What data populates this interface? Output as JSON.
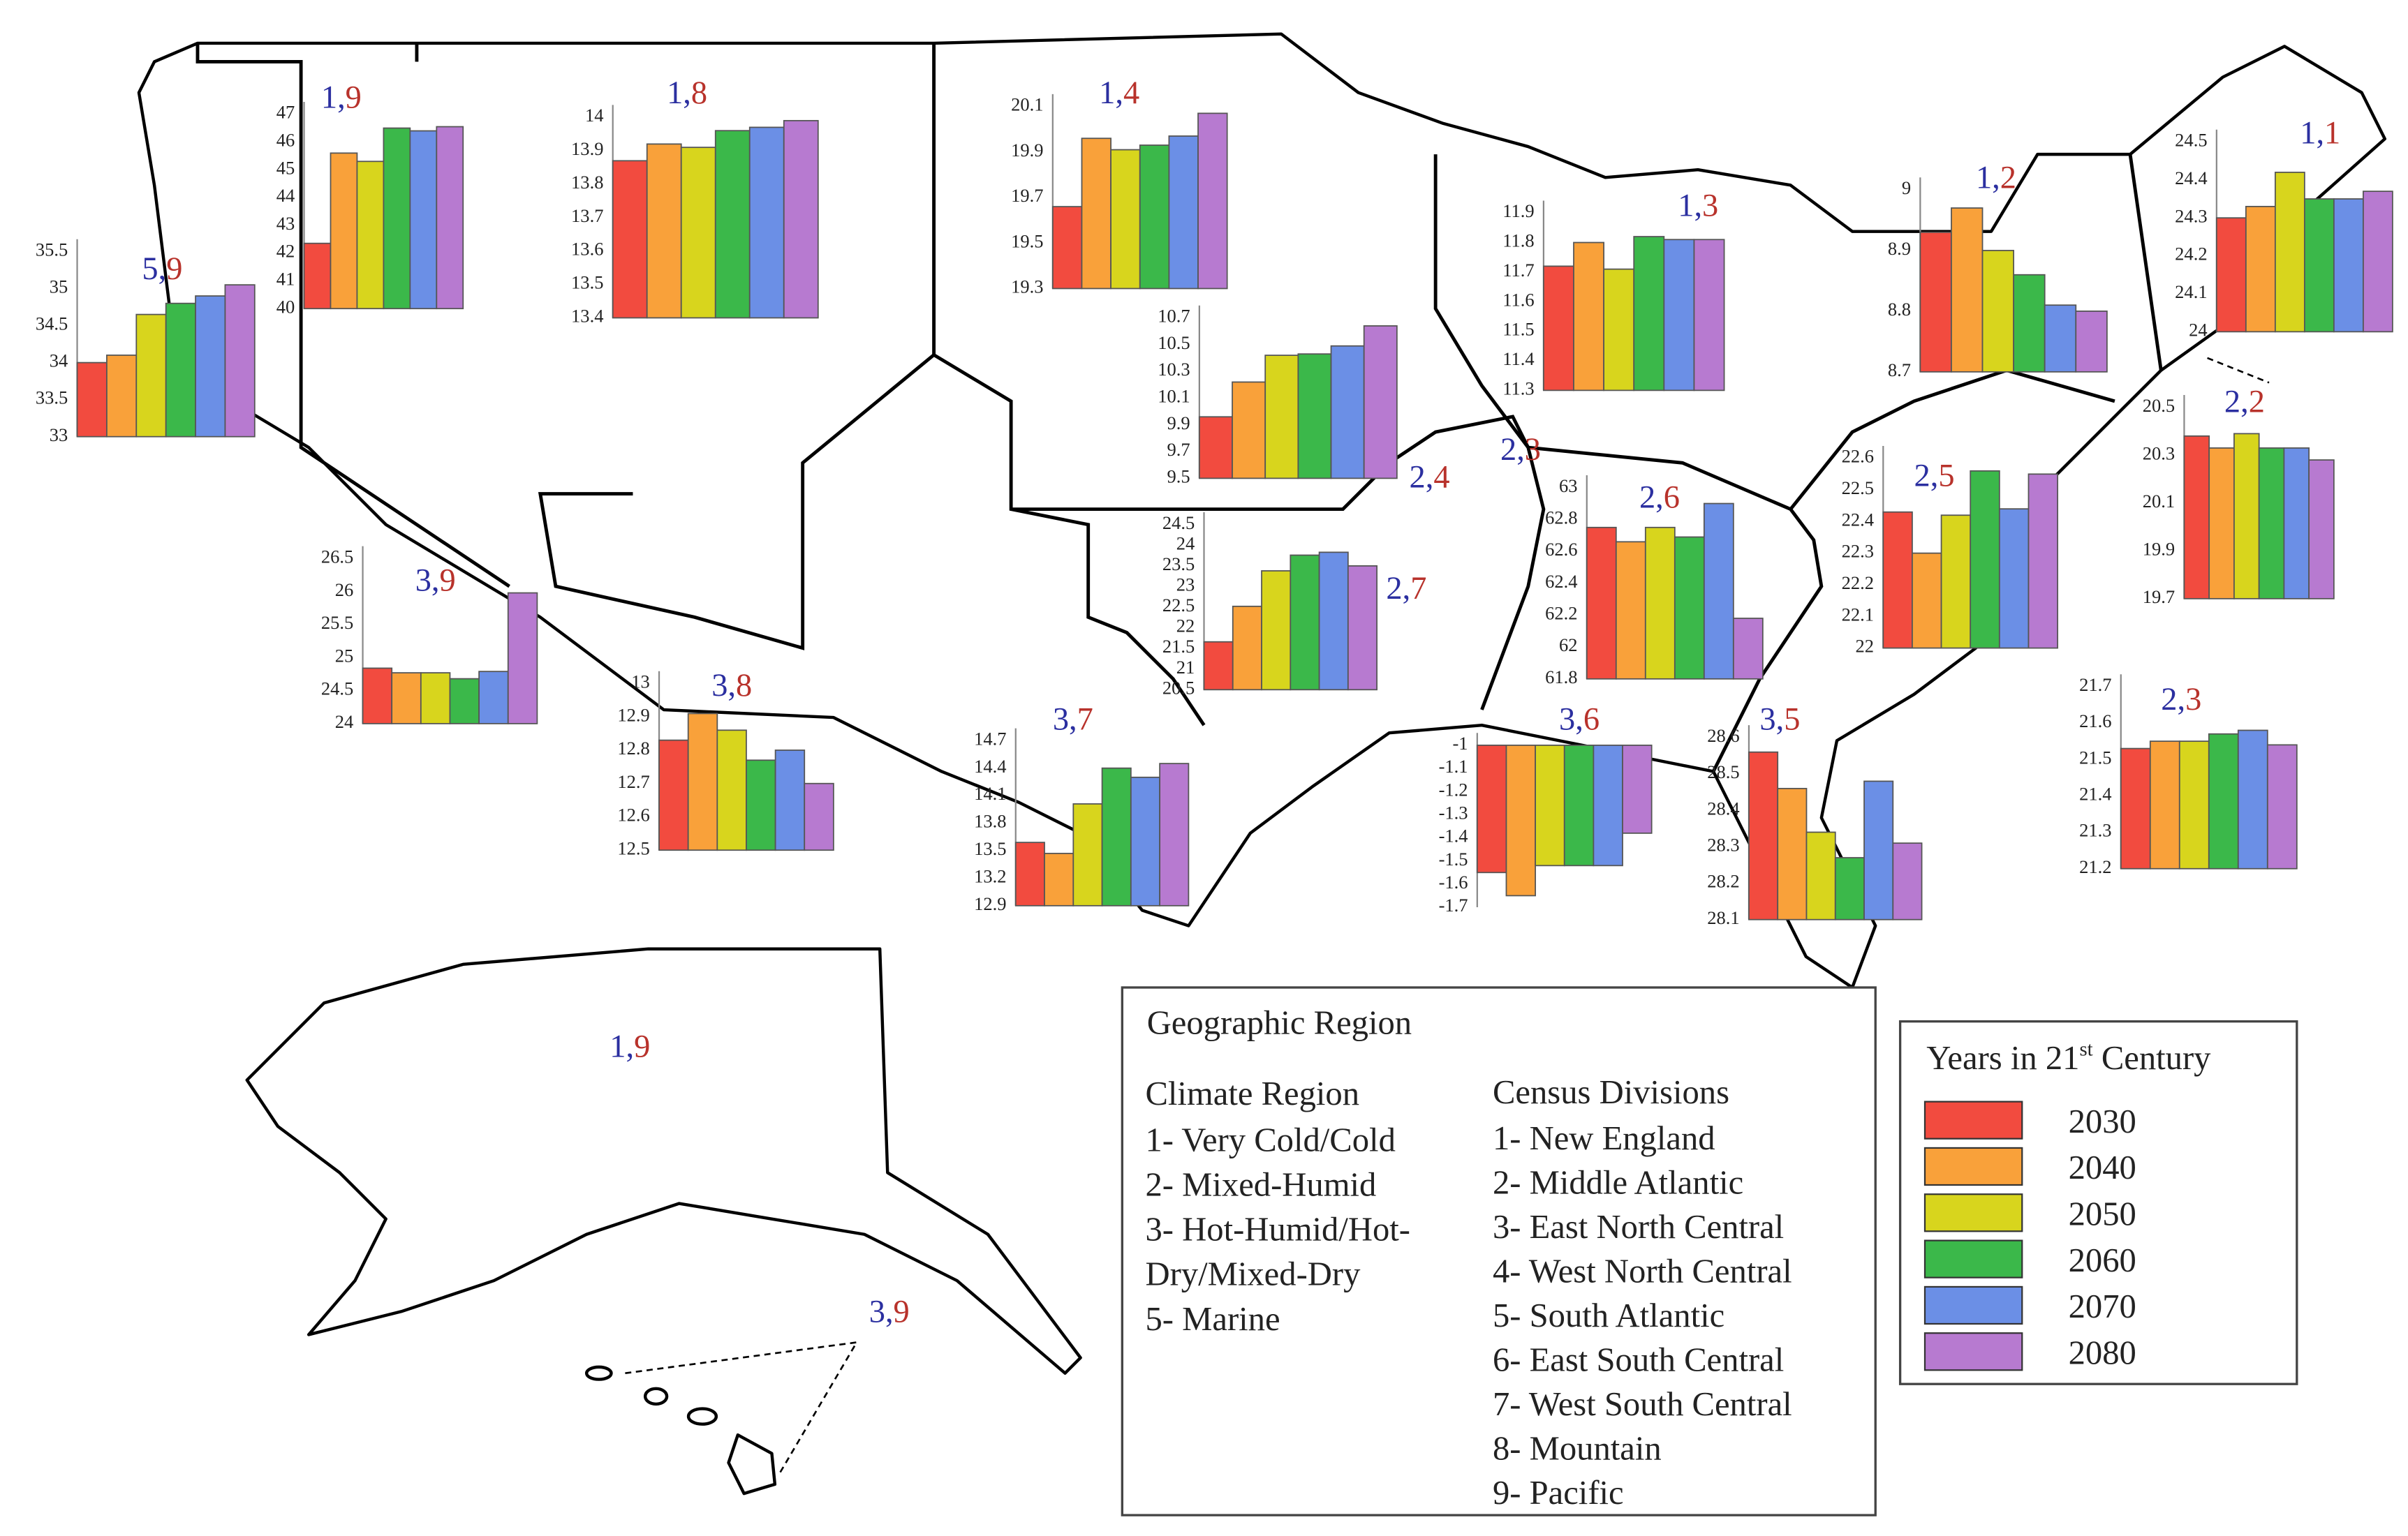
{
  "chart_data": [
    {
      "type": "bar",
      "climate": "5,",
      "division": "9",
      "values": [
        34.0,
        34.1,
        34.65,
        34.8,
        34.9,
        35.05
      ],
      "ylim": [
        33,
        35.5
      ],
      "yticks": [
        33,
        33.5,
        34,
        34.5,
        35,
        35.5
      ]
    },
    {
      "type": "bar",
      "climate": "1,",
      "division": "9",
      "values": [
        42.35,
        45.6,
        45.3,
        46.5,
        46.4,
        46.55
      ],
      "ylim": [
        40,
        47
      ],
      "yticks": [
        40,
        41,
        42,
        43,
        44,
        45,
        46,
        47
      ]
    },
    {
      "type": "bar",
      "climate": "1,",
      "division": "8",
      "values": [
        13.87,
        13.92,
        13.91,
        13.96,
        13.97,
        13.99
      ],
      "ylim": [
        13.4,
        14
      ],
      "yticks": [
        13.4,
        13.5,
        13.6,
        13.7,
        13.8,
        13.9,
        14
      ]
    },
    {
      "type": "bar",
      "climate": "1,",
      "division": "4",
      "values": [
        19.66,
        19.96,
        19.91,
        19.93,
        19.97,
        20.07
      ],
      "ylim": [
        19.3,
        20.1
      ],
      "yticks": [
        19.3,
        19.5,
        19.7,
        19.9,
        20.1
      ]
    },
    {
      "type": "bar",
      "climate": "2,",
      "division": "4",
      "values": [
        9.96,
        10.22,
        10.42,
        10.43,
        10.49,
        10.64
      ],
      "ylim": [
        9.5,
        10.7
      ],
      "yticks": [
        9.5,
        9.7,
        9.9,
        10.1,
        10.3,
        10.5,
        10.7
      ]
    },
    {
      "type": "bar",
      "climate": "1,",
      "division": "3",
      "values": [
        11.72,
        11.8,
        11.71,
        11.82,
        11.81,
        11.81
      ],
      "ylim": [
        11.3,
        11.9
      ],
      "yticks": [
        11.3,
        11.4,
        11.5,
        11.6,
        11.7,
        11.8,
        11.9
      ]
    },
    {
      "type": "bar",
      "climate": "1,",
      "division": "2",
      "values": [
        8.93,
        8.97,
        8.9,
        8.86,
        8.81,
        8.8
      ],
      "ylim": [
        8.7,
        9
      ],
      "yticks": [
        8.7,
        8.8,
        8.9,
        9
      ]
    },
    {
      "type": "bar",
      "climate": "1,",
      "division": "1",
      "values": [
        24.3,
        24.33,
        24.42,
        24.35,
        24.35,
        24.37
      ],
      "ylim": [
        24,
        24.5
      ],
      "yticks": [
        24,
        24.1,
        24.2,
        24.3,
        24.4,
        24.5
      ]
    },
    {
      "type": "bar",
      "climate": "2,",
      "division": "2",
      "values": [
        20.38,
        20.33,
        20.39,
        20.33,
        20.33,
        20.28
      ],
      "ylim": [
        19.7,
        20.5
      ],
      "yticks": [
        19.7,
        19.9,
        20.1,
        20.3,
        20.5
      ]
    },
    {
      "type": "bar",
      "climate": "2,",
      "division": "6",
      "values": [
        62.75,
        62.66,
        62.75,
        62.69,
        62.9,
        62.18
      ],
      "ylim": [
        61.8,
        63
      ],
      "yticks": [
        61.8,
        62,
        62.2,
        62.4,
        62.6,
        62.8,
        63
      ]
    },
    {
      "type": "bar",
      "climate": "2,",
      "division": "5",
      "values": [
        22.43,
        22.3,
        22.42,
        22.56,
        22.44,
        22.55
      ],
      "ylim": [
        22,
        22.6
      ],
      "yticks": [
        22,
        22.1,
        22.2,
        22.3,
        22.4,
        22.5,
        22.6
      ]
    },
    {
      "type": "bar",
      "climate": "2,",
      "division": "7",
      "values": [
        21.66,
        22.52,
        23.38,
        23.76,
        23.83,
        23.5
      ],
      "ylim": [
        20.5,
        24.5
      ],
      "yticks": [
        20.5,
        21,
        21.5,
        22,
        22.5,
        23,
        23.5,
        24,
        24.5
      ]
    },
    {
      "type": "bar",
      "climate": "3,",
      "division": "9",
      "values": [
        24.84,
        24.77,
        24.77,
        24.68,
        24.79,
        25.98
      ],
      "ylim": [
        24,
        26.5
      ],
      "yticks": [
        24,
        24.5,
        25,
        25.5,
        26,
        26.5
      ]
    },
    {
      "type": "bar",
      "climate": "3,",
      "division": "8",
      "values": [
        12.83,
        12.91,
        12.86,
        12.77,
        12.8,
        12.7
      ],
      "ylim": [
        12.5,
        13
      ],
      "yticks": [
        12.5,
        12.6,
        12.7,
        12.8,
        12.9,
        13
      ]
    },
    {
      "type": "bar",
      "climate": "3,",
      "division": "7",
      "values": [
        13.59,
        13.47,
        14.01,
        14.4,
        14.3,
        14.45
      ],
      "ylim": [
        12.9,
        14.7
      ],
      "yticks": [
        12.9,
        13.2,
        13.5,
        13.8,
        14.1,
        14.4,
        14.7
      ]
    },
    {
      "type": "bar",
      "climate": "3,",
      "division": "6",
      "values": [
        -1.55,
        -1.65,
        -1.52,
        -1.52,
        -1.52,
        -1.38
      ],
      "ylim": [
        -1.7,
        -1
      ],
      "yticks": [
        -1.7,
        -1.6,
        -1.5,
        -1.4,
        -1.3,
        -1.2,
        -1.1,
        -1
      ]
    },
    {
      "type": "bar",
      "climate": "3,",
      "division": "5",
      "values": [
        28.56,
        28.46,
        28.34,
        28.27,
        28.48,
        28.31
      ],
      "ylim": [
        28.1,
        28.6
      ],
      "yticks": [
        28.1,
        28.2,
        28.3,
        28.4,
        28.5,
        28.6
      ]
    },
    {
      "type": "bar",
      "climate": "2,",
      "division": "3",
      "values": [
        21.53,
        21.55,
        21.55,
        21.57,
        21.58,
        21.54
      ],
      "ylim": [
        21.2,
        21.7
      ],
      "yticks": [
        21.2,
        21.3,
        21.4,
        21.5,
        21.6,
        21.7
      ]
    }
  ],
  "map_labels": [
    {
      "climate": "2,",
      "division": "3"
    },
    {
      "climate": "1,",
      "division": "9"
    },
    {
      "climate": "3,",
      "division": "9"
    }
  ],
  "legend": {
    "title": "Years in 21",
    "title_sup": "st",
    "title_end": " Century",
    "years": [
      "2030",
      "2040",
      "2050",
      "2060",
      "2070",
      "2080"
    ],
    "colors": [
      "#f24b3f",
      "#f9a13a",
      "#d8d51d",
      "#3bb84a",
      "#6b8fe6",
      "#b77ad0"
    ]
  },
  "key": {
    "title": "Geographic Region",
    "climate_title": "Climate Region",
    "climate_items": [
      "1- Very Cold/Cold",
      "2- Mixed-Humid",
      "3- Hot-Humid/Hot-",
      "Dry/Mixed-Dry",
      "5- Marine"
    ],
    "division_title": "Census Divisions",
    "division_items": [
      "1- New England",
      "2- Middle Atlantic",
      "3- East North Central",
      "4- West North Central",
      "5- South Atlantic",
      "6- East South Central",
      "7- West South Central",
      "8- Mountain",
      "9- Pacific"
    ]
  }
}
